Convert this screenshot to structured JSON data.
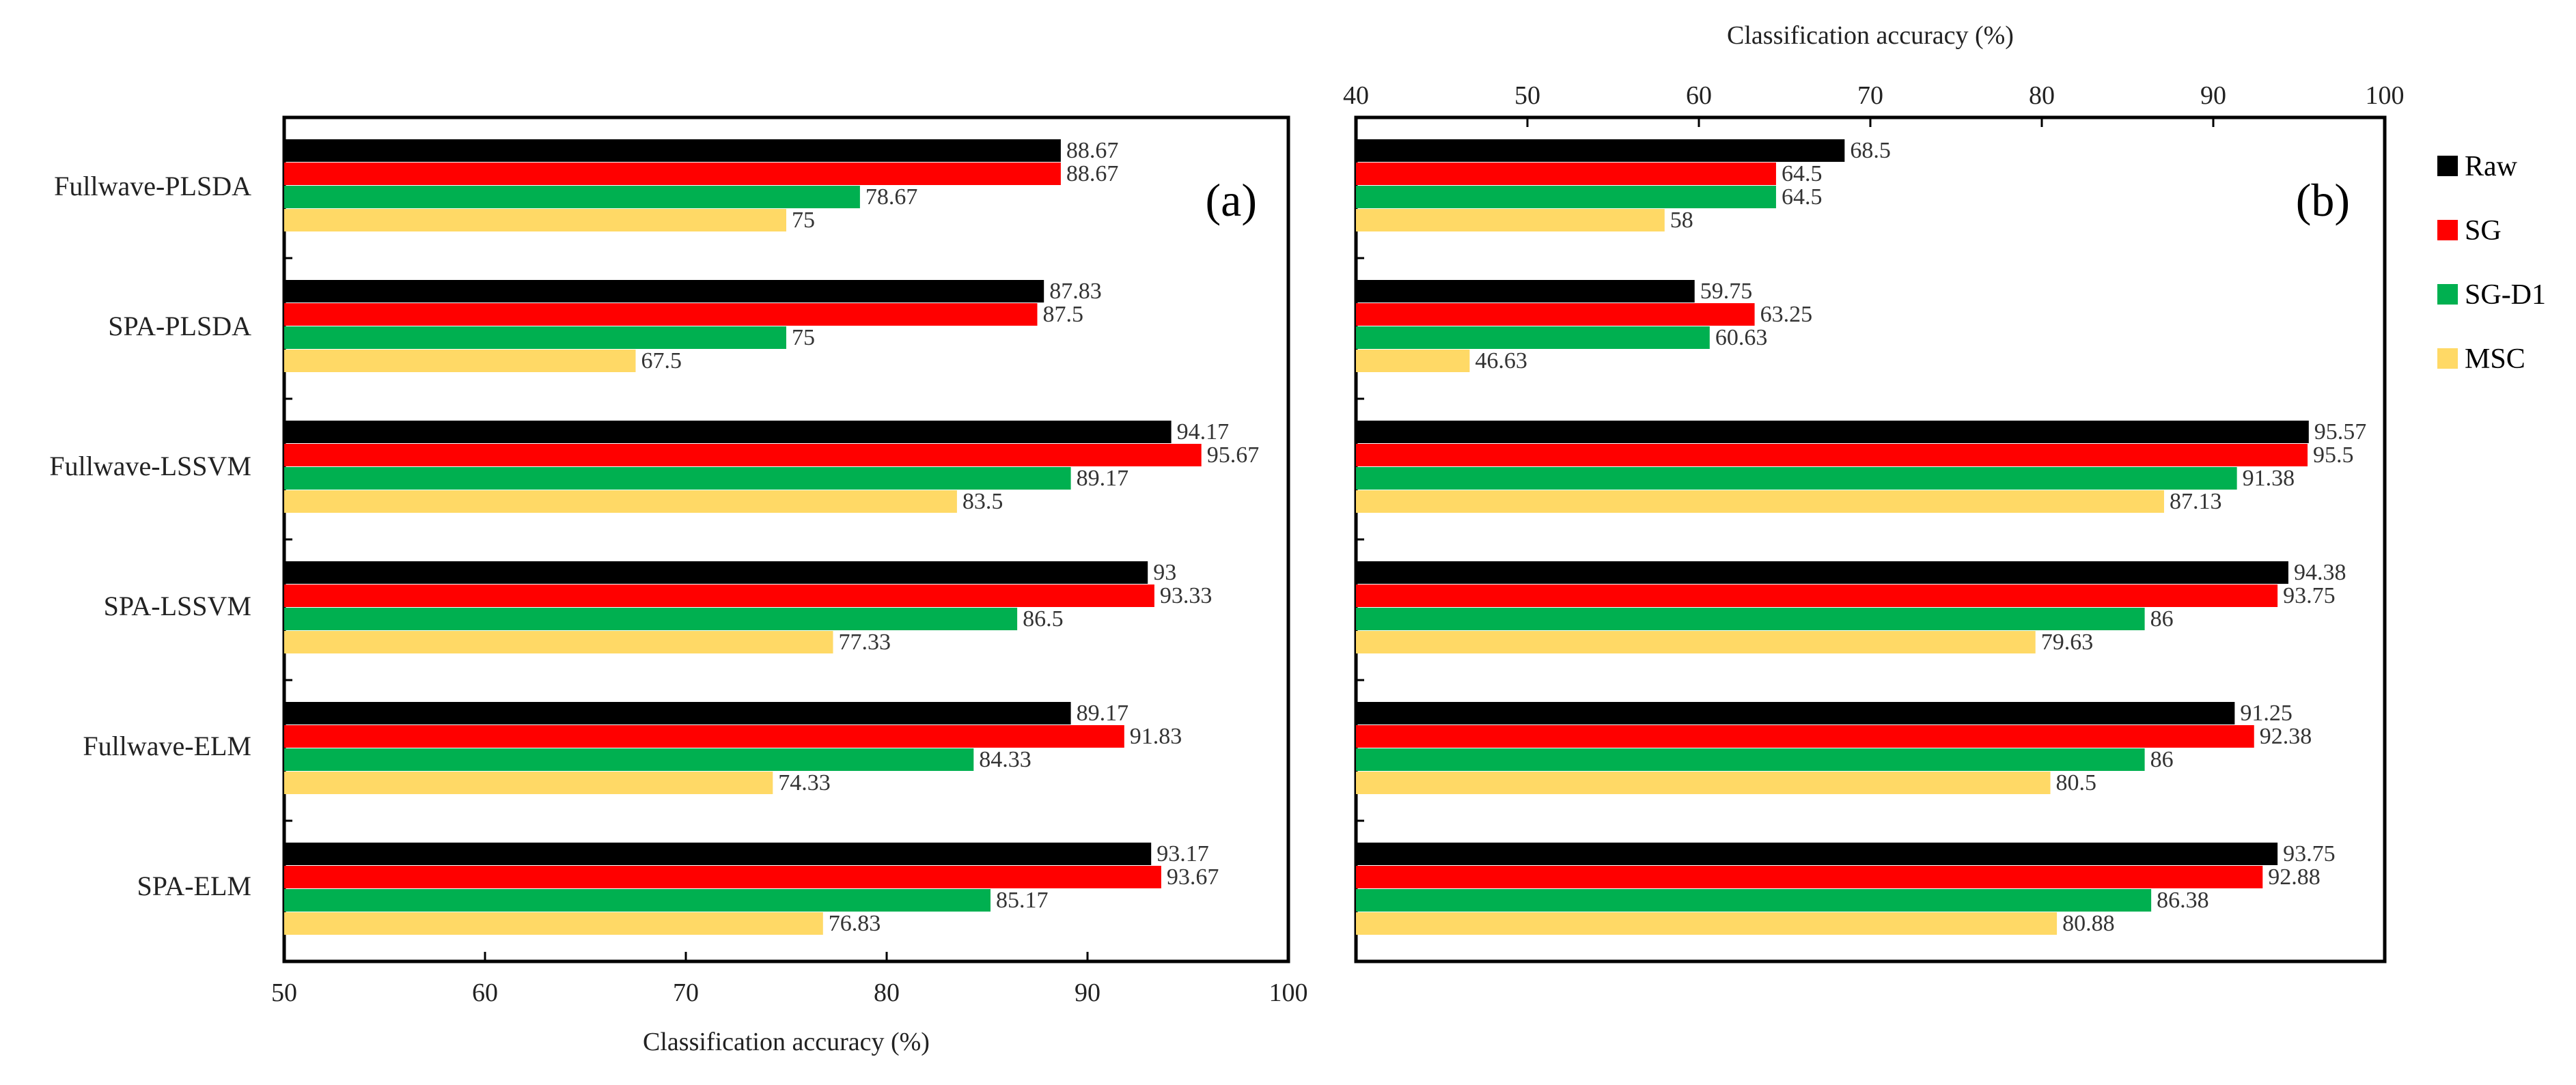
{
  "chart_data": {
    "type": "bar",
    "orientation": "horizontal",
    "categories": [
      "Fullwave-PLSDA",
      "SPA-PLSDA",
      "Fullwave-LSSVM",
      "SPA-LSSVM",
      "Fullwave-ELM",
      "SPA-ELM"
    ],
    "legend": {
      "placement": "right",
      "items": [
        {
          "name": "Raw",
          "color": "#000000"
        },
        {
          "name": "SG",
          "color": "#ff0000"
        },
        {
          "name": "SG-D1",
          "color": "#00b050"
        },
        {
          "name": "MSC",
          "color": "#ffd966"
        }
      ]
    },
    "panels": [
      {
        "label": "(a)",
        "xlabel": "Classification accuracy (%)",
        "xlabel_position": "bottom",
        "xlim": [
          50,
          100
        ],
        "xticks": [
          "50",
          "60",
          "70",
          "80",
          "90",
          "100"
        ],
        "series": [
          {
            "name": "Raw",
            "values": [
              88.67,
              87.83,
              94.17,
              93,
              89.17,
              93.17
            ],
            "labels": [
              "88.67",
              "87.83",
              "94.17",
              "93",
              "89.17",
              "93.17"
            ]
          },
          {
            "name": "SG",
            "values": [
              88.67,
              87.5,
              95.67,
              93.33,
              91.83,
              93.67
            ],
            "labels": [
              "88.67",
              "87.5",
              "95.67",
              "93.33",
              "91.83",
              "93.67"
            ]
          },
          {
            "name": "SG-D1",
            "values": [
              78.67,
              75,
              89.17,
              86.5,
              84.33,
              85.17
            ],
            "labels": [
              "78.67",
              "75",
              "89.17",
              "86.5",
              "84.33",
              "85.17"
            ]
          },
          {
            "name": "MSC",
            "values": [
              75,
              67.5,
              83.5,
              77.33,
              74.33,
              76.83
            ],
            "labels": [
              "75",
              "67.5",
              "83.5",
              "77.33",
              "74.33",
              "76.83"
            ]
          }
        ]
      },
      {
        "label": "(b)",
        "xlabel": "Classification accuracy (%)",
        "xlabel_position": "top",
        "xlim": [
          40,
          100
        ],
        "xticks": [
          "40",
          "50",
          "60",
          "70",
          "80",
          "90",
          "100"
        ],
        "series": [
          {
            "name": "Raw",
            "values": [
              68.5,
              59.75,
              95.57,
              94.38,
              91.25,
              93.75
            ],
            "labels": [
              "68.5",
              "59.75",
              "95.57",
              "94.38",
              "91.25",
              "93.75"
            ]
          },
          {
            "name": "SG",
            "values": [
              64.5,
              63.25,
              95.5,
              93.75,
              92.38,
              92.88
            ],
            "labels": [
              "64.5",
              "63.25",
              "95.5",
              "93.75",
              "92.38",
              "92.88"
            ]
          },
          {
            "name": "SG-D1",
            "values": [
              64.5,
              60.63,
              91.38,
              86,
              86,
              86.38
            ],
            "labels": [
              "64.5",
              "60.63",
              "91.38",
              "86",
              "86",
              "86.38"
            ]
          },
          {
            "name": "MSC",
            "values": [
              58,
              46.63,
              87.13,
              79.63,
              80.5,
              80.88
            ],
            "labels": [
              "58",
              "46.63",
              "87.13",
              "79.63",
              "80.5",
              "80.88"
            ]
          }
        ]
      }
    ]
  }
}
